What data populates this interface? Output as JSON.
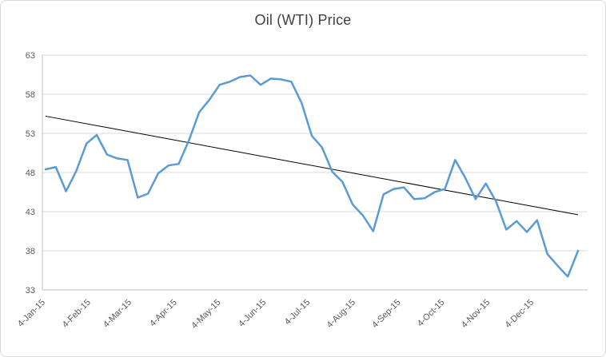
{
  "window": {
    "background": "#FFFFFF",
    "border_color": "#D9D9D9"
  },
  "chart_data": {
    "type": "line",
    "title": "Oil (WTI) Price",
    "title_color": "#404040",
    "xlabel": "",
    "ylabel": "",
    "ylim": [
      33,
      63
    ],
    "y_ticks": [
      33,
      38,
      43,
      48,
      53,
      58,
      63
    ],
    "x_tick_labels": [
      "4-Jan-15",
      "4-Feb-15",
      "4-Mar-15",
      "4-Apr-15",
      "4-May-15",
      "4-Jun-15",
      "4-Jul-15",
      "4-Aug-15",
      "4-Sep-15",
      "4-Oct-15",
      "4-Nov-15",
      "4-Dec-15"
    ],
    "x_tick_positions": [
      0,
      4.43,
      8.43,
      12.86,
      17.14,
      21.57,
      25.86,
      30.29,
      34.71,
      39.0,
      43.43,
      47.71
    ],
    "grid": true,
    "gridline_color": "#D9D9D9",
    "axis_line_color": "#BFBFBF",
    "axis_label_color": "#595959",
    "legend_position": "none",
    "series": [
      {
        "name": "Oil (WTI) Price",
        "color": "#5B9BD5",
        "frequency": "weekly",
        "values": [
          48.4,
          48.7,
          45.6,
          48.2,
          51.7,
          52.8,
          50.3,
          49.8,
          49.6,
          44.8,
          45.3,
          47.9,
          48.9,
          49.1,
          52.1,
          55.7,
          57.3,
          59.2,
          59.6,
          60.2,
          60.4,
          59.2,
          60.0,
          59.9,
          59.6,
          56.9,
          52.7,
          51.2,
          48.1,
          46.8,
          43.9,
          42.5,
          40.5,
          45.2,
          45.9,
          46.1,
          44.6,
          44.7,
          45.5,
          45.9,
          49.6,
          47.3,
          44.6,
          46.6,
          44.3,
          40.7,
          41.8,
          40.4,
          41.9,
          37.6,
          36.1,
          34.7,
          38.0
        ]
      }
    ],
    "trendline": {
      "type": "linear",
      "color": "#000000",
      "start_value": 55.2,
      "end_value": 42.6
    }
  }
}
